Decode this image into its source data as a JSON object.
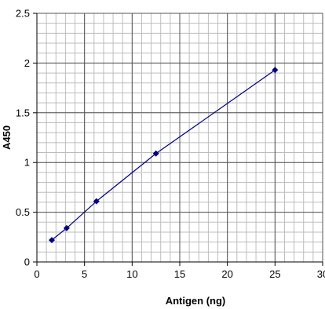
{
  "chart_data": {
    "type": "scatter",
    "title": "",
    "xlabel": "Antigen (ng)",
    "ylabel": "A450",
    "xlim": [
      0,
      30
    ],
    "ylim": [
      0,
      2.5
    ],
    "x_ticks": [
      0,
      5,
      10,
      15,
      20,
      25,
      30
    ],
    "x_tick_labels": [
      "0",
      "5",
      "10",
      "15",
      "20",
      "25",
      "30"
    ],
    "y_ticks": [
      0,
      0.5,
      1,
      1.5,
      2,
      2.5
    ],
    "y_tick_labels": [
      "0",
      "0.5",
      "1",
      "1.5",
      "2",
      "2.5"
    ],
    "grid": {
      "major": true,
      "minor": true,
      "x_minor_step": 1,
      "y_minor_step": 0.1
    },
    "legend": "none",
    "series": [
      {
        "x": [
          1.5625,
          3.125,
          6.25,
          12.5,
          25
        ],
        "y": [
          0.22,
          0.34,
          0.61,
          1.09,
          1.93
        ],
        "connected": true,
        "marker": "diamond",
        "color": "#000080"
      }
    ],
    "colors": {
      "line": "#000080",
      "marker": "#000080",
      "major_grid": "#555555",
      "minor_grid": "#bdbdbd",
      "axis": "#000000"
    }
  }
}
